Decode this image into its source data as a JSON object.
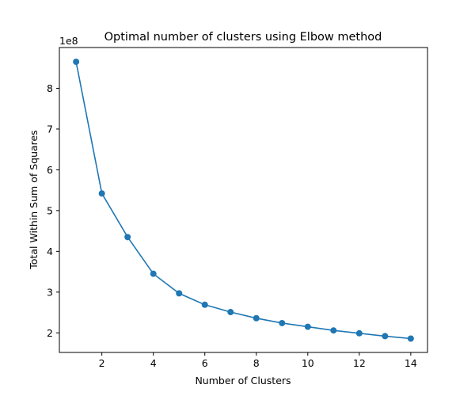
{
  "chart_data": {
    "type": "line",
    "title": "Optimal number of clusters using Elbow method",
    "xlabel": "Number of Clusters",
    "ylabel": "Total Within Sum of Squares",
    "y_offset_label": "1e8",
    "x": [
      1,
      2,
      3,
      4,
      5,
      6,
      7,
      8,
      9,
      10,
      11,
      12,
      13,
      14
    ],
    "y": [
      8.65,
      5.42,
      4.35,
      3.45,
      2.97,
      2.69,
      2.51,
      2.36,
      2.24,
      2.15,
      2.06,
      1.99,
      1.92,
      1.86
    ],
    "xlim": [
      0.35,
      14.65
    ],
    "ylim": [
      1.52,
      9.0
    ],
    "x_ticks": [
      2,
      4,
      6,
      8,
      10,
      12,
      14
    ],
    "y_ticks": [
      2,
      3,
      4,
      5,
      6,
      7,
      8
    ],
    "grid": false,
    "series_color": "#1f77b4"
  }
}
